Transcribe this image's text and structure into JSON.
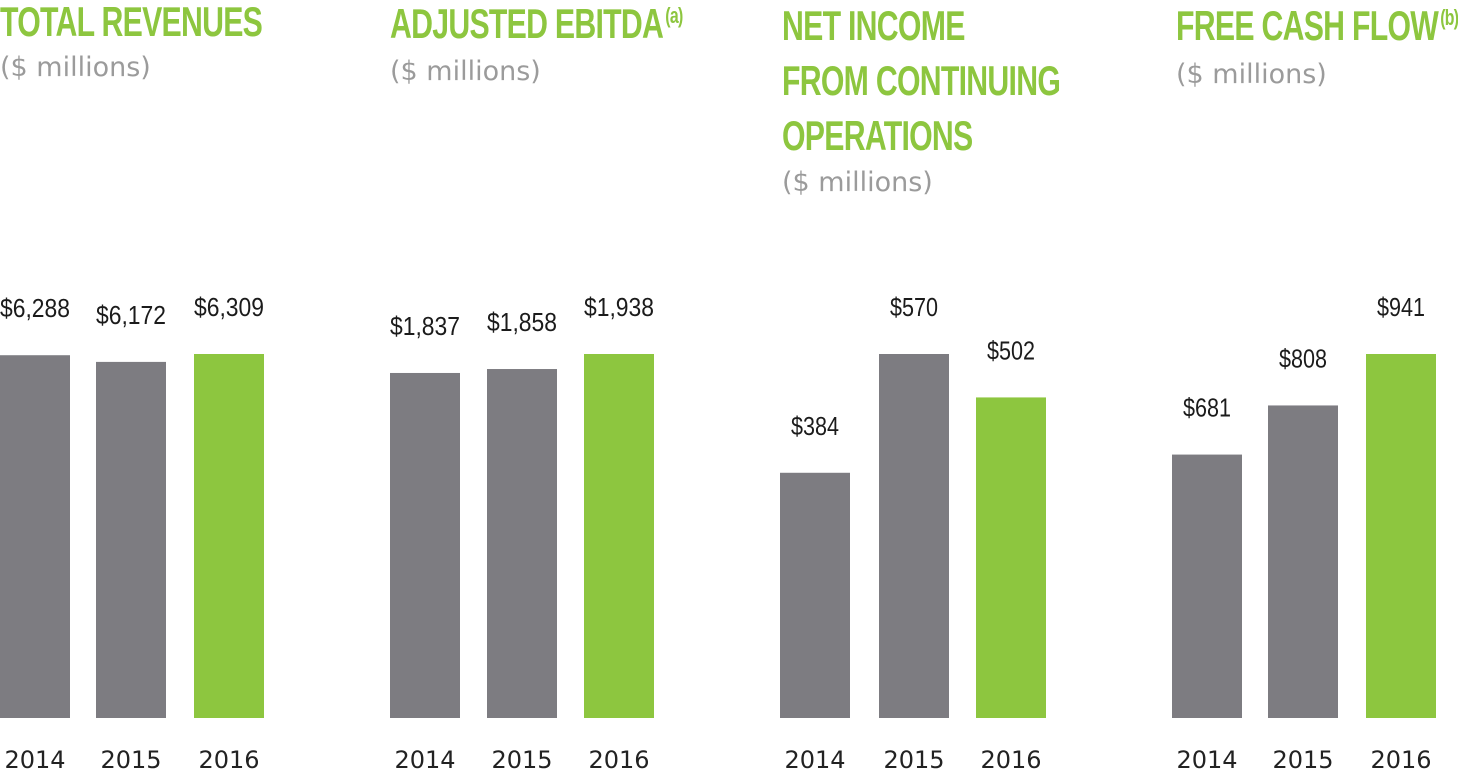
{
  "colors": {
    "title": "#8dc63f",
    "subtitle": "#9b9b9b",
    "bar_default": "#7d7c81",
    "bar_highlight": "#8dc63f"
  },
  "chart_data": [
    {
      "type": "bar",
      "title_lines": [
        "TOTAL REVENUES"
      ],
      "title_note": "",
      "subtitle": "($ millions)",
      "categories": [
        "2014",
        "2015",
        "2016"
      ],
      "values": [
        6288,
        6172,
        6309
      ],
      "value_labels": [
        "$6,288",
        "$6,172",
        "$6,309"
      ],
      "highlight_index": 2,
      "ylim": [
        0,
        6309
      ],
      "grid": false,
      "legend": "none"
    },
    {
      "type": "bar",
      "title_lines": [
        "ADJUSTED EBITDA"
      ],
      "title_note": "(a)",
      "subtitle": "($ millions)",
      "categories": [
        "2014",
        "2015",
        "2016"
      ],
      "values": [
        1837,
        1858,
        1938
      ],
      "value_labels": [
        "$1,837",
        "$1,858",
        "$1,938"
      ],
      "highlight_index": 2,
      "ylim": [
        0,
        1938
      ],
      "grid": false,
      "legend": "none"
    },
    {
      "type": "bar",
      "title_lines": [
        "NET INCOME",
        "FROM CONTINUING",
        "OPERATIONS"
      ],
      "title_note": "",
      "subtitle": "($ millions)",
      "categories": [
        "2014",
        "2015",
        "2016"
      ],
      "values": [
        384,
        570,
        502
      ],
      "value_labels": [
        "$384",
        "$570",
        "$502"
      ],
      "highlight_index": 2,
      "ylim": [
        0,
        570
      ],
      "grid": false,
      "legend": "none"
    },
    {
      "type": "bar",
      "title_lines": [
        "FREE CASH FLOW"
      ],
      "title_note": "(b)",
      "subtitle": "($ millions)",
      "categories": [
        "2014",
        "2015",
        "2016"
      ],
      "values": [
        681,
        808,
        941
      ],
      "value_labels": [
        "$681",
        "$808",
        "$941"
      ],
      "highlight_index": 2,
      "ylim": [
        0,
        941
      ],
      "grid": false,
      "legend": "none"
    }
  ]
}
